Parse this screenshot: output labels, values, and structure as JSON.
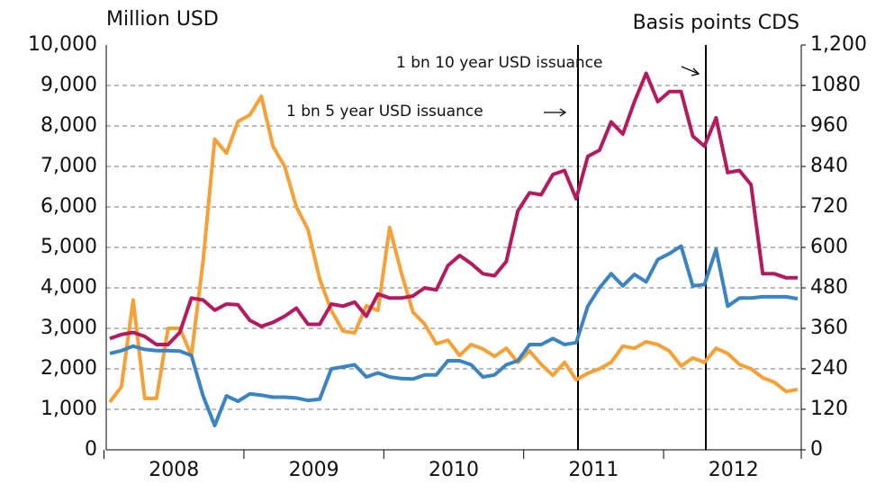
{
  "chart_data": {
    "type": "line",
    "y_label": "Million USD",
    "y2_label": "Basis points CDS",
    "annotations": [
      "1 bn 10 year USD issuance",
      "1 bn 5 year USD issuance"
    ],
    "categories": [
      null,
      null,
      null,
      null,
      null,
      "2008",
      null,
      null,
      null,
      null,
      null,
      null,
      null,
      null,
      null,
      null,
      null,
      "2009",
      null,
      null,
      null,
      null,
      null,
      null,
      null,
      null,
      null,
      null,
      null,
      "2010",
      null,
      null,
      null,
      null,
      null,
      null,
      null,
      null,
      null,
      null,
      null,
      "2011",
      null,
      null,
      null,
      null,
      null,
      null,
      null,
      null,
      null,
      null,
      null,
      "2012",
      null,
      null,
      null,
      null,
      null,
      null
    ],
    "series": [
      {
        "color": "#f7a035",
        "values": [
          1180,
          1560,
          3700,
          1270,
          1270,
          3000,
          3000,
          2330,
          4670,
          7670,
          7330,
          8110,
          8270,
          8730,
          7490,
          7000,
          6000,
          5440,
          4220,
          3440,
          2930,
          2890,
          3560,
          3440,
          5490,
          4380,
          3400,
          3110,
          2620,
          2710,
          2330,
          2600,
          2490,
          2310,
          2510,
          2160,
          2440,
          2110,
          1840,
          2160,
          1730,
          1890,
          2000,
          2160,
          2560,
          2510,
          2670,
          2600,
          2440,
          2070,
          2270,
          2160,
          2510,
          2380,
          2110,
          2000,
          1780,
          1670,
          1440,
          1490
        ]
      },
      {
        "color": "#3b84c4",
        "values": [
          2380,
          2450,
          2560,
          2480,
          2450,
          2450,
          2440,
          2330,
          1330,
          600,
          1330,
          1200,
          1380,
          1350,
          1300,
          1300,
          1280,
          1220,
          1250,
          2000,
          2050,
          2100,
          1800,
          1900,
          1800,
          1760,
          1750,
          1850,
          1850,
          2200,
          2200,
          2100,
          1800,
          1850,
          2100,
          2200,
          2600,
          2600,
          2750,
          2600,
          2650,
          3550,
          4000,
          4350,
          4050,
          4330,
          4150,
          4700,
          4850,
          5030,
          4050,
          4080,
          4950,
          3550,
          3750,
          3750,
          3780,
          3780,
          3780,
          3730
        ]
      },
      {
        "color": "#b5195e",
        "axis": "y2",
        "values": [
          330,
          342,
          348,
          336,
          312,
          312,
          348,
          450,
          444,
          414,
          432,
          430,
          384,
          366,
          378,
          396,
          420,
          372,
          372,
          432,
          426,
          438,
          396,
          462,
          450,
          450,
          456,
          480,
          474,
          546,
          576,
          552,
          522,
          516,
          558,
          708,
          762,
          756,
          816,
          828,
          744,
          870,
          888,
          972,
          936,
          1032,
          1116,
          1032,
          1062,
          1062,
          930,
          900,
          984,
          822,
          828,
          786,
          522,
          522,
          510,
          510
        ]
      }
    ],
    "ylim": [
      0,
      10000
    ],
    "yticks": [
      0,
      {
        "value": 1000,
        "label": "1,000"
      },
      {
        "value": 2000,
        "label": "2,000"
      },
      {
        "value": 3000,
        "label": "3,000"
      },
      {
        "value": 4000,
        "label": "4,000"
      },
      {
        "value": 5000,
        "label": "5,000"
      },
      {
        "value": 6000,
        "label": "6,000"
      },
      {
        "value": 7000,
        "label": "7,000"
      },
      {
        "value": 8000,
        "label": "8,000"
      },
      {
        "value": 9000,
        "label": "9,000"
      },
      {
        "value": 10000,
        "label": "10,000"
      }
    ],
    "y2lim": [
      0,
      1200
    ],
    "y2ticks": [
      0,
      120,
      240,
      360,
      480,
      600,
      720,
      840,
      960,
      1080,
      {
        "value": 1200,
        "label": "1,200"
      }
    ],
    "grid": true
  }
}
